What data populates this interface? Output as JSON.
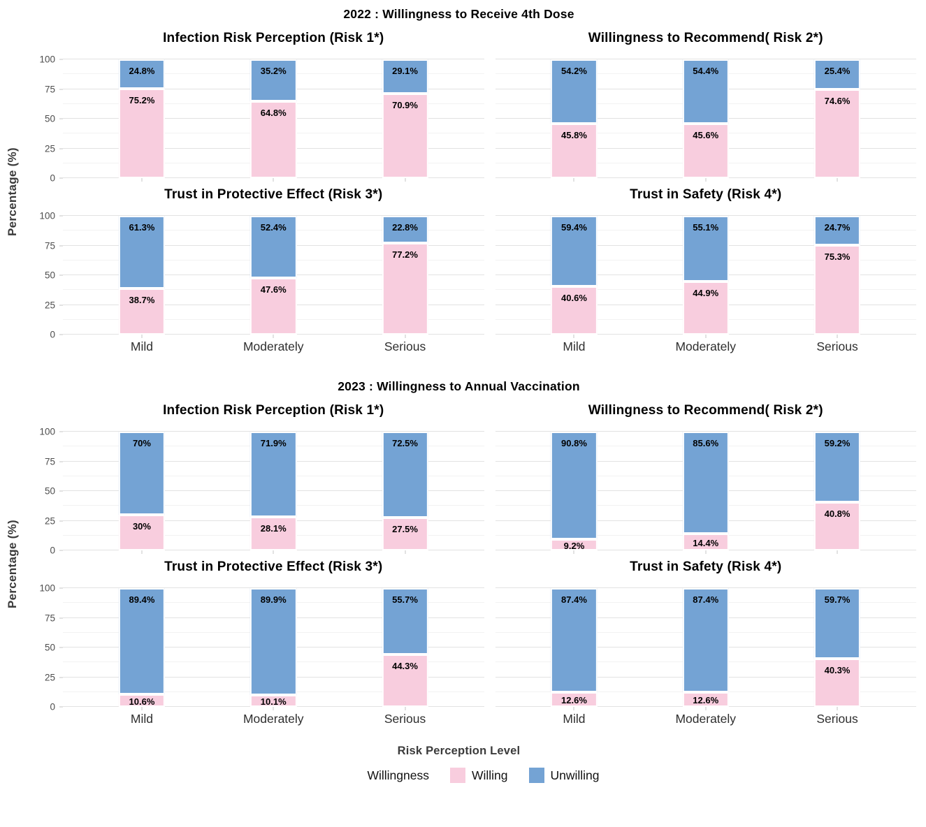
{
  "chart_data": {
    "type": "bar",
    "stacked": true,
    "orientation": "vertical",
    "categories": [
      "Mild",
      "Moderately",
      "Serious"
    ],
    "xlabel": "Risk Perception Level",
    "ylabel": "Percentage (%)",
    "ylim": [
      0,
      100
    ],
    "yticks": [
      0,
      25,
      50,
      75,
      100
    ],
    "minor_gridlines": [
      12.5,
      37.5,
      62.5,
      87.5
    ],
    "grid": true,
    "colors": {
      "willing": "#F8CDDE",
      "unwilling": "#74A3D4"
    },
    "legend": {
      "title": "Willingness",
      "position": "bottom",
      "entries": [
        {
          "label": "Willing",
          "color": "#F8CDDE"
        },
        {
          "label": "Unwilling",
          "color": "#74A3D4"
        }
      ]
    },
    "groups": [
      {
        "title": "2022 : Willingness to Receive 4th Dose",
        "panels": [
          {
            "title": "Infection Risk Perception (Risk 1*)",
            "series": [
              {
                "name": "Willing",
                "values": [
                  75.2,
                  64.8,
                  70.9
                ],
                "labels": [
                  "75.2%",
                  "64.8%",
                  "70.9%"
                ]
              },
              {
                "name": "Unwilling",
                "values": [
                  24.8,
                  35.2,
                  29.1
                ],
                "labels": [
                  "24.8%",
                  "35.2%",
                  "29.1%"
                ]
              }
            ]
          },
          {
            "title": "Willingness to Recommend( Risk 2*)",
            "series": [
              {
                "name": "Willing",
                "values": [
                  45.8,
                  45.6,
                  74.6
                ],
                "labels": [
                  "45.8%",
                  "45.6%",
                  "74.6%"
                ]
              },
              {
                "name": "Unwilling",
                "values": [
                  54.2,
                  54.4,
                  25.4
                ],
                "labels": [
                  "54.2%",
                  "54.4%",
                  "25.4%"
                ]
              }
            ]
          },
          {
            "title": "Trust in Protective Effect (Risk 3*)",
            "series": [
              {
                "name": "Willing",
                "values": [
                  38.7,
                  47.6,
                  77.2
                ],
                "labels": [
                  "38.7%",
                  "47.6%",
                  "77.2%"
                ]
              },
              {
                "name": "Unwilling",
                "values": [
                  61.3,
                  52.4,
                  22.8
                ],
                "labels": [
                  "61.3%",
                  "52.4%",
                  "22.8%"
                ]
              }
            ]
          },
          {
            "title": "Trust in Safety (Risk 4*)",
            "series": [
              {
                "name": "Willing",
                "values": [
                  40.6,
                  44.9,
                  75.3
                ],
                "labels": [
                  "40.6%",
                  "44.9%",
                  "75.3%"
                ]
              },
              {
                "name": "Unwilling",
                "values": [
                  59.4,
                  55.1,
                  24.7
                ],
                "labels": [
                  "59.4%",
                  "55.1%",
                  "24.7%"
                ]
              }
            ]
          }
        ]
      },
      {
        "title": "2023 : Willingness to Annual Vaccination",
        "panels": [
          {
            "title": "Infection Risk Perception (Risk 1*)",
            "series": [
              {
                "name": "Willing",
                "values": [
                  30,
                  28.1,
                  27.5
                ],
                "labels": [
                  "30%",
                  "28.1%",
                  "27.5%"
                ]
              },
              {
                "name": "Unwilling",
                "values": [
                  70,
                  71.9,
                  72.5
                ],
                "labels": [
                  "70%",
                  "71.9%",
                  "72.5%"
                ]
              }
            ]
          },
          {
            "title": "Willingness to Recommend( Risk 2*)",
            "series": [
              {
                "name": "Willing",
                "values": [
                  9.2,
                  14.4,
                  40.8
                ],
                "labels": [
                  "9.2%",
                  "14.4%",
                  "40.8%"
                ]
              },
              {
                "name": "Unwilling",
                "values": [
                  90.8,
                  85.6,
                  59.2
                ],
                "labels": [
                  "90.8%",
                  "85.6%",
                  "59.2%"
                ]
              }
            ]
          },
          {
            "title": "Trust in Protective Effect (Risk 3*)",
            "series": [
              {
                "name": "Willing",
                "values": [
                  10.6,
                  10.1,
                  44.3
                ],
                "labels": [
                  "10.6%",
                  "10.1%",
                  "44.3%"
                ]
              },
              {
                "name": "Unwilling",
                "values": [
                  89.4,
                  89.9,
                  55.7
                ],
                "labels": [
                  "89.4%",
                  "89.9%",
                  "55.7%"
                ]
              }
            ]
          },
          {
            "title": "Trust in Safety (Risk 4*)",
            "series": [
              {
                "name": "Willing",
                "values": [
                  12.6,
                  12.6,
                  40.3
                ],
                "labels": [
                  "12.6%",
                  "12.6%",
                  "40.3%"
                ]
              },
              {
                "name": "Unwilling",
                "values": [
                  87.4,
                  87.4,
                  59.7
                ],
                "labels": [
                  "87.4%",
                  "87.4%",
                  "59.7%"
                ]
              }
            ]
          }
        ]
      }
    ]
  }
}
